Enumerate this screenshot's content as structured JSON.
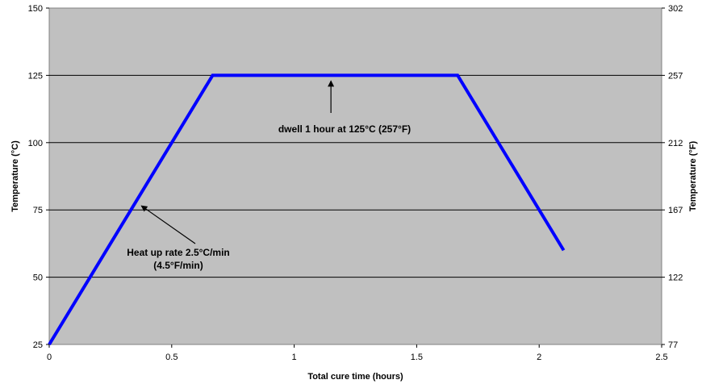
{
  "chart_data": {
    "type": "line",
    "title": "",
    "xlabel": "Total cure time (hours)",
    "ylabel_left": "Temperature (°C)",
    "ylabel_right": "Temperature (°F)",
    "xlim": [
      0,
      2.5
    ],
    "ylim": [
      25,
      150
    ],
    "x_ticks": [
      "0",
      "0.5",
      "1",
      "1.5",
      "2",
      "2.5"
    ],
    "y_ticks_left": [
      "25",
      "50",
      "75",
      "100",
      "125",
      "150"
    ],
    "y_ticks_right": [
      "77",
      "122",
      "167",
      "212",
      "257",
      "302"
    ],
    "grid": "horizontal",
    "plot_background": "#c0c0c0",
    "line_color": "#0000ff",
    "series": [
      {
        "x": [
          0,
          0.667,
          1.667,
          2.1
        ],
        "y": [
          25,
          125,
          125,
          60
        ]
      }
    ],
    "annotations": [
      {
        "lines": [
          "dwell 1 hour at 125°C (257°F)"
        ],
        "target": [
          1.15,
          125
        ]
      },
      {
        "lines": [
          "Heat up rate 2.5°C/min",
          "(4.5°F/min)"
        ],
        "target": [
          0.36,
          78
        ]
      }
    ]
  }
}
